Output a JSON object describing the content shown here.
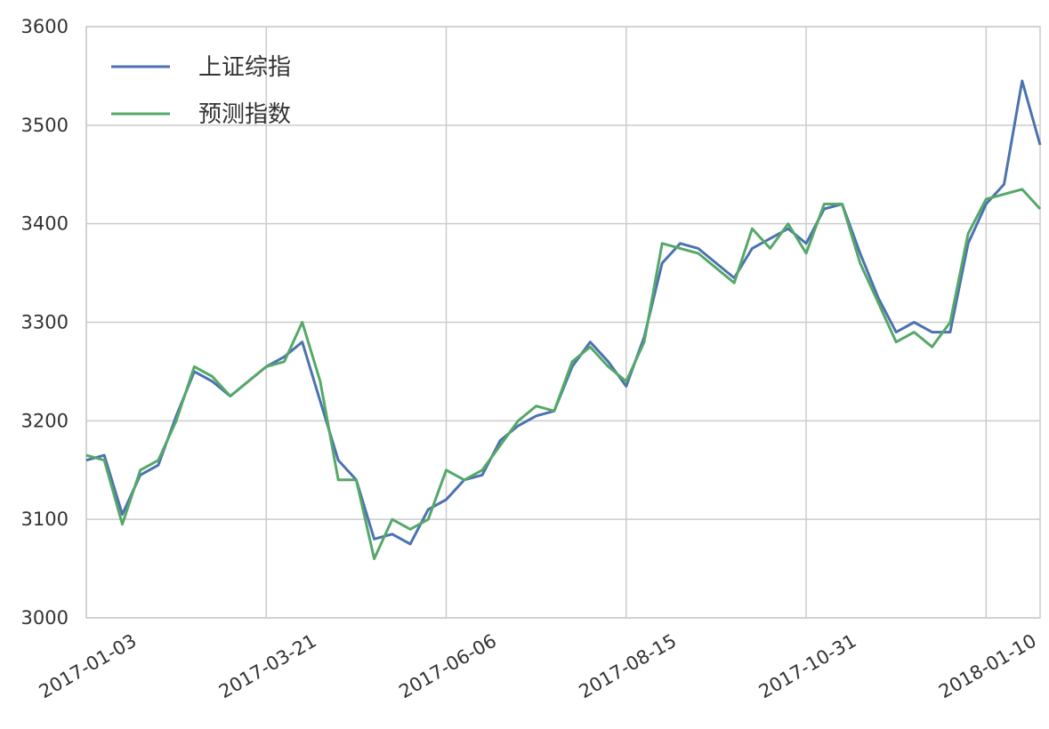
{
  "chart_data": {
    "type": "line",
    "categories": [
      "2017-01-03",
      null,
      null,
      null,
      null,
      null,
      null,
      null,
      null,
      null,
      "2017-03-21",
      null,
      null,
      null,
      null,
      null,
      null,
      null,
      null,
      null,
      "2017-06-06",
      null,
      null,
      null,
      null,
      null,
      null,
      null,
      null,
      null,
      "2017-08-15",
      null,
      null,
      null,
      null,
      null,
      null,
      null,
      null,
      null,
      "2017-10-31",
      null,
      null,
      null,
      null,
      null,
      null,
      null,
      null,
      null,
      "2018-01-10",
      null,
      null,
      null
    ],
    "series": [
      {
        "name": "上证综指",
        "color": "#4c72b0",
        "values": [
          3160,
          3165,
          3105,
          3145,
          3155,
          3205,
          3250,
          3240,
          3225,
          3240,
          3255,
          3265,
          3280,
          3220,
          3160,
          3140,
          3080,
          3085,
          3075,
          3110,
          3120,
          3140,
          3145,
          3180,
          3195,
          3205,
          3210,
          3255,
          3280,
          3260,
          3235,
          3285,
          3360,
          3380,
          3375,
          3360,
          3345,
          3375,
          3385,
          3395,
          3380,
          3415,
          3420,
          3370,
          3325,
          3290,
          3300,
          3290,
          3290,
          3380,
          3420,
          3440,
          3545,
          3480
        ]
      },
      {
        "name": "预测指数",
        "color": "#55a868",
        "values": [
          3165,
          3160,
          3095,
          3150,
          3160,
          3200,
          3255,
          3245,
          3225,
          3240,
          3255,
          3260,
          3300,
          3240,
          3140,
          3140,
          3060,
          3100,
          3090,
          3100,
          3150,
          3140,
          3150,
          3175,
          3200,
          3215,
          3210,
          3260,
          3275,
          3255,
          3240,
          3280,
          3380,
          3375,
          3370,
          3355,
          3340,
          3395,
          3375,
          3400,
          3370,
          3420,
          3420,
          3360,
          3320,
          3280,
          3290,
          3275,
          3300,
          3390,
          3425,
          3430,
          3435,
          3415
        ]
      }
    ],
    "ylim": [
      3000,
      3600
    ],
    "yticks": [
      3000,
      3100,
      3200,
      3300,
      3400,
      3500,
      3600
    ],
    "grid": true,
    "legend": "upper left"
  }
}
